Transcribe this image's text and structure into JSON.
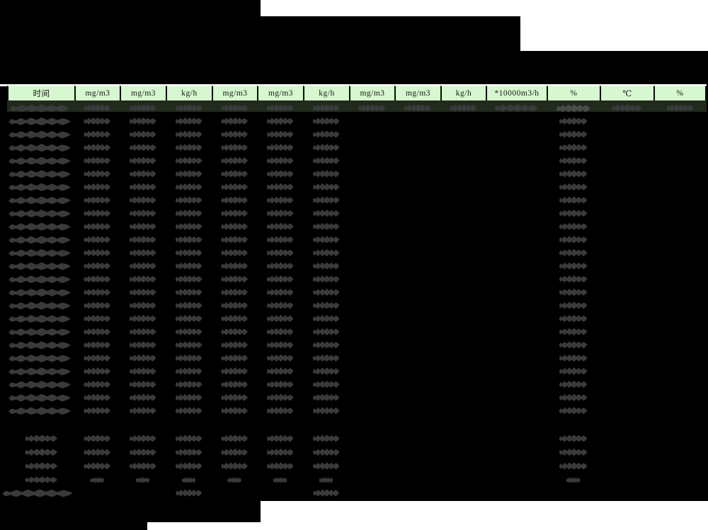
{
  "header": {
    "columns": [
      "时间",
      "mg/m3",
      "mg/m3",
      "kg/h",
      "mg/m3",
      "mg/m3",
      "kg/h",
      "mg/m3",
      "mg/m3",
      "kg/h",
      "*10000m3/h",
      "%",
      "℃",
      "%"
    ]
  },
  "colors": {
    "page_bg": "#000000",
    "paper_white": "#ffffff",
    "header_cell_bg": "#d6f7cf",
    "header_text": "#161616",
    "header_border": "#090909",
    "subheader_band": "#212b1d",
    "redaction_blob": "#3a3a3a",
    "redaction_blob_light": "#4a4a4a"
  },
  "body": {
    "subheader_row": {
      "redacted": true,
      "blob_columns": [
        0,
        1,
        2,
        3,
        4,
        5,
        6,
        7,
        8,
        9,
        10,
        11,
        12,
        13
      ]
    },
    "data_rows": {
      "count": 23,
      "redacted": true,
      "blob_columns": [
        0,
        1,
        2,
        3,
        4,
        5,
        6,
        11
      ]
    },
    "summary_rows": {
      "count": 3,
      "redacted": true,
      "blob_columns": [
        0,
        1,
        2,
        3,
        4,
        5,
        6,
        11
      ]
    },
    "small_summary_row": {
      "count": 1,
      "redacted": true,
      "blob_columns": [
        0,
        1,
        2,
        3,
        4,
        5,
        6,
        11
      ]
    },
    "total_row": {
      "redacted": true,
      "blob_columns": [
        0,
        3,
        6
      ]
    }
  }
}
